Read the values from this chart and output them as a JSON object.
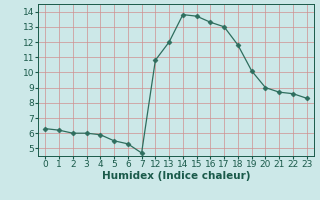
{
  "hours": [
    0,
    1,
    2,
    3,
    4,
    5,
    6,
    7,
    12,
    13,
    14,
    15,
    16,
    17,
    18,
    19,
    20,
    21,
    22,
    23
  ],
  "y": [
    6.3,
    6.2,
    6.0,
    6.0,
    5.9,
    5.5,
    5.3,
    4.7,
    10.8,
    12.0,
    13.8,
    13.7,
    13.3,
    13.0,
    11.8,
    10.1,
    9.0,
    8.7,
    8.6,
    8.3
  ],
  "line_color": "#2e6e5e",
  "marker": "D",
  "marker_size": 2.5,
  "bg_color": "#cce8e8",
  "grid_color_v": "#d09090",
  "grid_color_h": "#d09090",
  "xlabel": "Humidex (Indice chaleur)",
  "ylim": [
    4.5,
    14.5
  ],
  "yticks": [
    5,
    6,
    7,
    8,
    9,
    10,
    11,
    12,
    13,
    14
  ],
  "tick_fontsize": 6.5,
  "xlabel_fontsize": 7.5,
  "label_color": "#1a5a4a"
}
